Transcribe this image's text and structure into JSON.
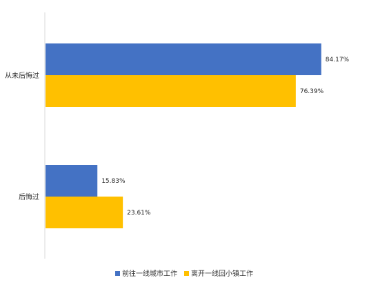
{
  "chart_data": {
    "type": "bar",
    "orientation": "horizontal",
    "categories": [
      "从未后悔过",
      "后悔过"
    ],
    "series": [
      {
        "name": "前往一线城市工作",
        "values": [
          84.17,
          15.83
        ],
        "color": "#4472C4"
      },
      {
        "name": "离开一线回小镇工作",
        "values": [
          76.39,
          23.61
        ],
        "color": "#FFC000"
      }
    ],
    "value_suffix": "%",
    "xlim": [
      0,
      100
    ],
    "grid": false,
    "legend_position": "bottom"
  }
}
